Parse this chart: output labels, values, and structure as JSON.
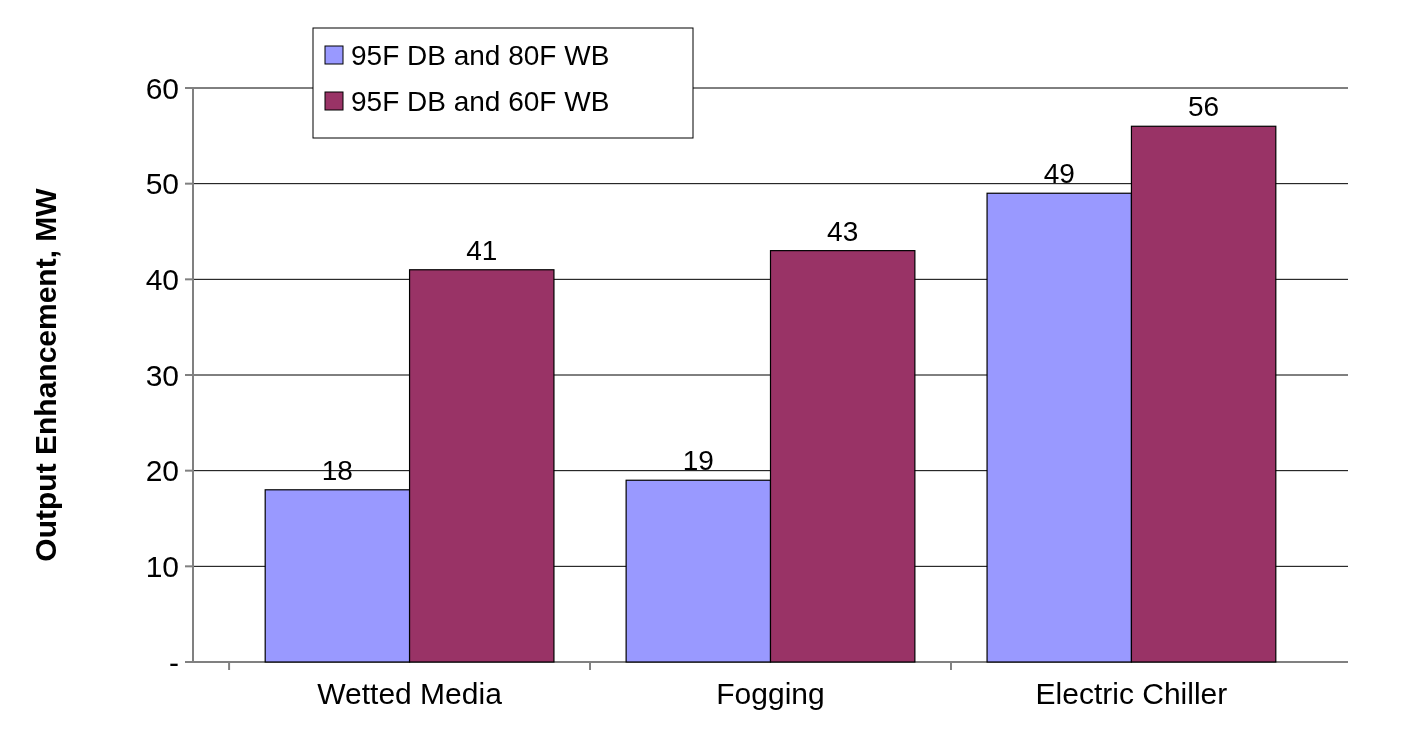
{
  "chart_data": {
    "type": "bar",
    "ylabel": "Output Enhancement, MW",
    "categories": [
      "Wetted Media",
      "Fogging",
      "Electric Chiller"
    ],
    "series": [
      {
        "name": "95F DB and 80F WB",
        "color": "#9999ff",
        "values": [
          18,
          19,
          49
        ]
      },
      {
        "name": "95F DB and 60F WB",
        "color": "#993366",
        "values": [
          41,
          43,
          56
        ]
      }
    ],
    "ylim": [
      0,
      60
    ],
    "yticks": [
      {
        "value": 0,
        "label": "-"
      },
      10,
      20,
      30,
      40,
      50,
      60
    ],
    "grid": "y",
    "legend": "top left",
    "data_labels": true
  }
}
